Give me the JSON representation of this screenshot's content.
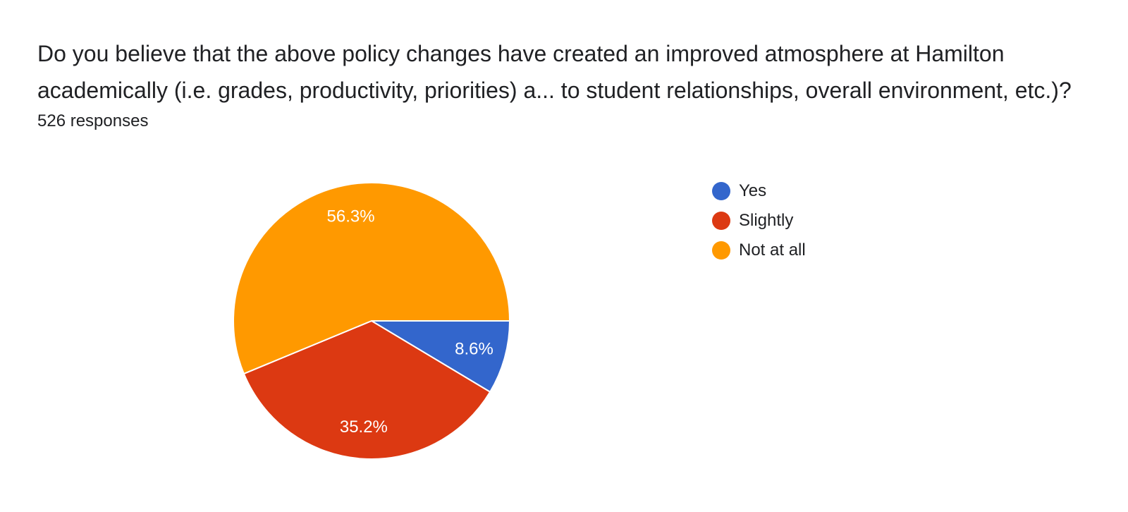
{
  "question": {
    "line1": "Do you believe that the above policy changes have created an improved atmosphere at Hamilton",
    "line2": "academically (i.e. grades, productivity, priorities) a... to student relationships, overall environment, etc.)?"
  },
  "responses_label": "526 responses",
  "chart_data": {
    "type": "pie",
    "title": "Do you believe that the above policy changes have created an improved atmosphere at Hamilton academically (i.e. grades, productivity, priorities) a... to student relationships, overall environment, etc.)?",
    "total_responses": 526,
    "categories": [
      "Yes",
      "Slightly",
      "Not at all"
    ],
    "values": [
      8.6,
      35.2,
      56.3
    ],
    "labels": [
      "8.6%",
      "35.2%",
      "56.3%"
    ],
    "colors": [
      "#3366cc",
      "#dc3912",
      "#ff9900"
    ],
    "legend_position": "right"
  }
}
